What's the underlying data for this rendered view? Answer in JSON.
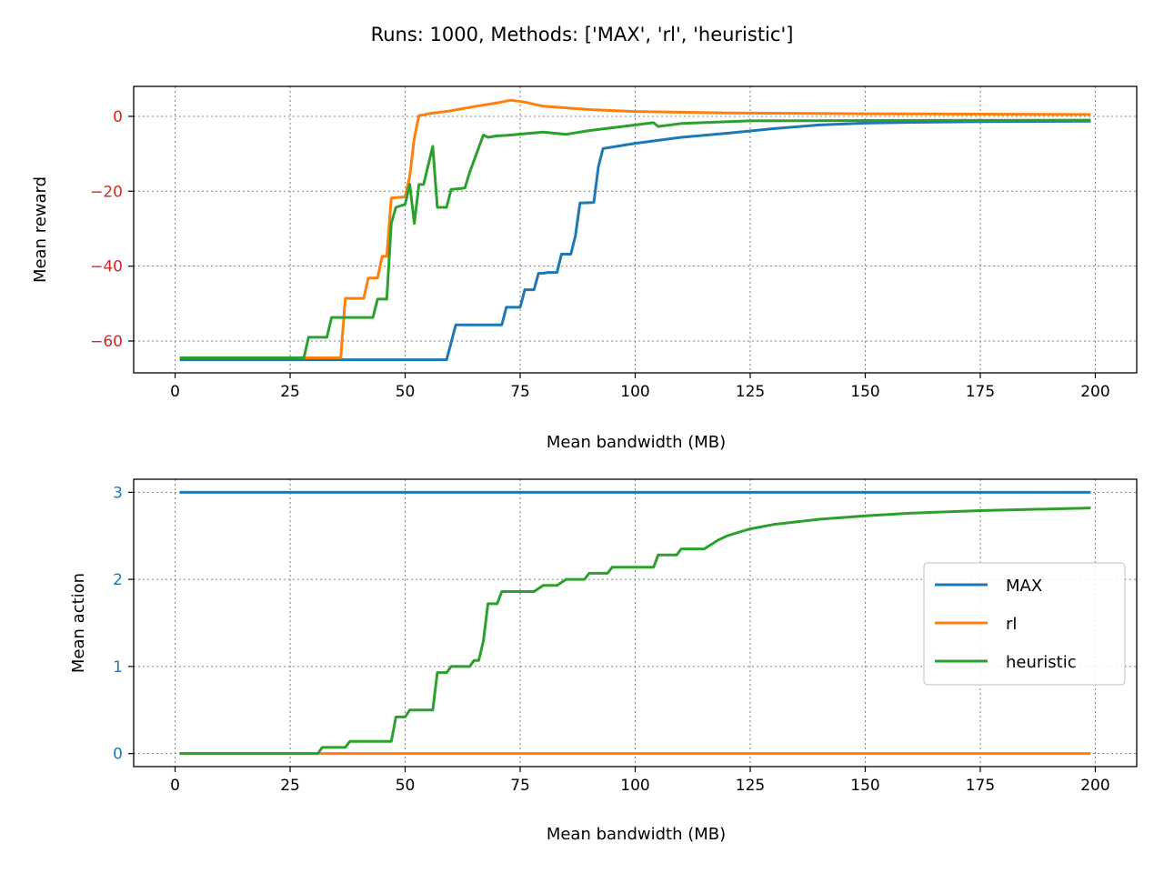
{
  "figure": {
    "title": "Runs: 1000, Methods: ['MAX', 'rl', 'heuristic']"
  },
  "colors": {
    "MAX": "#1f77b4",
    "rl": "#ff7f0e",
    "heuristic": "#2ca02c",
    "reward_tick": "#d62728",
    "action_tick": "#1f77b4",
    "grid": "#808080"
  },
  "chart_data": [
    {
      "type": "line",
      "xlabel": "Mean bandwidth (MB)",
      "ylabel": "Mean reward",
      "xlim": [
        -9,
        209
      ],
      "ylim": [
        -68.5,
        8
      ],
      "xticks": [
        0,
        25,
        50,
        75,
        100,
        125,
        150,
        175,
        200
      ],
      "yticks": [
        -60,
        -40,
        -20,
        0
      ],
      "ytick_labels": [
        "−60",
        "−40",
        "−20",
        "0"
      ],
      "grid": true,
      "series": [
        {
          "name": "MAX",
          "x": [
            1,
            59,
            61,
            71,
            72,
            75,
            76,
            78,
            79,
            80,
            81,
            83,
            84,
            86,
            87,
            88,
            89,
            91,
            92,
            93,
            100,
            110,
            120,
            130,
            140,
            150,
            160,
            175,
            199
          ],
          "y": [
            -65,
            -65,
            -55.7,
            -55.7,
            -51,
            -51,
            -46.3,
            -46.3,
            -41.9,
            -41.9,
            -41.7,
            -41.7,
            -36.8,
            -36.8,
            -32,
            -23.1,
            -23.1,
            -23,
            -13.5,
            -8.6,
            -7.2,
            -5.6,
            -4.5,
            -3.3,
            -2.3,
            -1.8,
            -1.6,
            -1.4,
            -1.3
          ]
        },
        {
          "name": "rl",
          "x": [
            1,
            36,
            37,
            41,
            42,
            44,
            45,
            46,
            47,
            49,
            50,
            51,
            52,
            53,
            54,
            55,
            60,
            65,
            70,
            73,
            76,
            80,
            90,
            100,
            120,
            150,
            199
          ],
          "y": [
            -64.5,
            -64.5,
            -48.6,
            -48.6,
            -43.2,
            -43.2,
            -37.4,
            -37.4,
            -21.8,
            -21.6,
            -21.5,
            -16,
            -5.8,
            0.2,
            0.4,
            0.7,
            1.5,
            2.6,
            3.6,
            4.3,
            3.8,
            2.7,
            1.8,
            1.3,
            0.9,
            0.7,
            0.5
          ]
        },
        {
          "name": "heuristic",
          "x": [
            1,
            28,
            29,
            33,
            34,
            43,
            44,
            46,
            47,
            48,
            50,
            51,
            52,
            53,
            54,
            56,
            57,
            59,
            60,
            62,
            63,
            64,
            67,
            68,
            70,
            72,
            80,
            85,
            90,
            104,
            105,
            110,
            125,
            150,
            199
          ],
          "y": [
            -64.5,
            -64.5,
            -59,
            -59,
            -53.7,
            -53.7,
            -48.8,
            -48.8,
            -28.5,
            -24.3,
            -23.5,
            -18.1,
            -28.6,
            -18.2,
            -18.2,
            -8,
            -24.3,
            -24.3,
            -19.5,
            -19.3,
            -19.1,
            -15,
            -5,
            -5.6,
            -5.2,
            -5.1,
            -4.2,
            -4.8,
            -3.8,
            -1.7,
            -2.7,
            -1.9,
            -1.2,
            -1.1,
            -1
          ]
        }
      ]
    },
    {
      "type": "line",
      "xlabel": "Mean bandwidth (MB)",
      "ylabel": "Mean action",
      "xlim": [
        -9,
        209
      ],
      "ylim": [
        -0.15,
        3.15
      ],
      "xticks": [
        0,
        25,
        50,
        75,
        100,
        125,
        150,
        175,
        200
      ],
      "yticks": [
        0,
        1,
        2,
        3
      ],
      "ytick_labels": [
        "0",
        "1",
        "2",
        "3"
      ],
      "grid": true,
      "legend": {
        "position": "center-right",
        "entries": [
          "MAX",
          "rl",
          "heuristic"
        ]
      },
      "series": [
        {
          "name": "MAX",
          "x": [
            1,
            199
          ],
          "y": [
            3,
            3
          ]
        },
        {
          "name": "rl",
          "x": [
            1,
            199
          ],
          "y": [
            0,
            0
          ]
        },
        {
          "name": "heuristic",
          "x": [
            1,
            31,
            32,
            37,
            38,
            47,
            48,
            50,
            51,
            56,
            57,
            59,
            60,
            64,
            65,
            66,
            67,
            68,
            70,
            71,
            78,
            80,
            83,
            85,
            89,
            90,
            94,
            95,
            104,
            105,
            109,
            110,
            115,
            118,
            120,
            123,
            125,
            130,
            135,
            140,
            150,
            160,
            175,
            199
          ],
          "y": [
            0,
            0,
            0.07,
            0.07,
            0.14,
            0.14,
            0.42,
            0.42,
            0.5,
            0.5,
            0.93,
            0.93,
            1,
            1,
            1.07,
            1.07,
            1.29,
            1.72,
            1.72,
            1.86,
            1.86,
            1.93,
            1.93,
            2,
            2,
            2.07,
            2.07,
            2.14,
            2.14,
            2.28,
            2.28,
            2.35,
            2.35,
            2.45,
            2.5,
            2.55,
            2.58,
            2.63,
            2.66,
            2.69,
            2.73,
            2.76,
            2.79,
            2.82
          ]
        }
      ]
    }
  ]
}
